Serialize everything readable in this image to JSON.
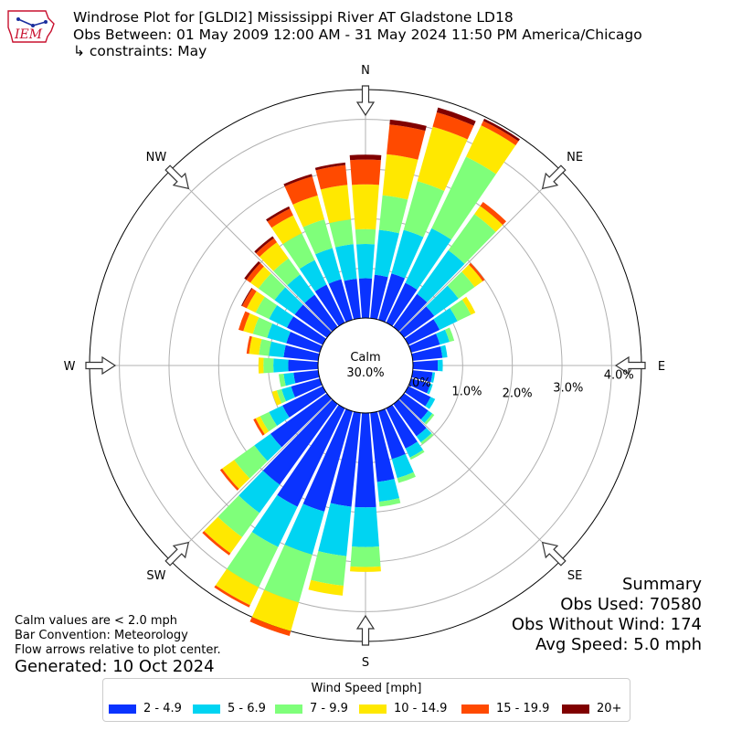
{
  "header": {
    "logo_text": "IEM",
    "title_line1": "Windrose Plot for [GLDI2] Mississippi River  AT Gladstone LD18",
    "title_line2": "Obs Between: 01 May 2009 12:00 AM - 31 May 2024 11:50 PM America/Chicago",
    "title_line3": "↳ constraints: May"
  },
  "summary": {
    "heading": "Summary",
    "obs_used": "Obs Used: 70580",
    "obs_without_wind": "Obs Without Wind: 174",
    "avg_speed": "Avg Speed: 5.0 mph"
  },
  "notes": {
    "calm_note": "Calm values are < 2.0 mph",
    "bar_convention": "Bar Convention: Meteorology",
    "flow_arrows": "Flow arrows relative to plot center.",
    "generated": "Generated: 10 Oct 2024"
  },
  "chart_data": {
    "type": "windrose",
    "calm_label": "Calm",
    "calm_value": "30.0%",
    "radial_ticks": [
      0,
      1,
      2,
      3,
      4
    ],
    "radial_tick_labels": [
      "0.0%",
      "1.0%",
      "2.0%",
      "3.0%",
      "4.0%"
    ],
    "radial_max": 4.6,
    "directions": [
      {
        "label": "N",
        "angle": 0
      },
      {
        "label": "NE",
        "angle": 45
      },
      {
        "label": "E",
        "angle": 90
      },
      {
        "label": "SE",
        "angle": 135
      },
      {
        "label": "S",
        "angle": 180
      },
      {
        "label": "SW",
        "angle": 225
      },
      {
        "label": "W",
        "angle": 270
      },
      {
        "label": "NW",
        "angle": 315
      }
    ],
    "legend_title": "Wind Speed [mph]",
    "bins": [
      {
        "label": "2 - 4.9",
        "color": "#0a33ff"
      },
      {
        "label": "5 - 6.9",
        "color": "#00d4f2"
      },
      {
        "label": "7 - 9.9",
        "color": "#7fff7a"
      },
      {
        "label": "10 - 14.9",
        "color": "#ffe800"
      },
      {
        "label": "15 - 19.9",
        "color": "#ff4a00"
      },
      {
        "label": "20+",
        "color": "#800000"
      }
    ],
    "sectors": [
      {
        "dir": 0,
        "values": [
          0.8,
          0.69,
          0.3,
          0.9,
          0.5,
          0.1
        ]
      },
      {
        "dir": 10,
        "values": [
          0.88,
          0.91,
          0.7,
          0.83,
          0.6,
          0.1
        ]
      },
      {
        "dir": 20,
        "values": [
          0.97,
          0.91,
          1.02,
          1.14,
          0.3,
          0.1
        ]
      },
      {
        "dir": 30,
        "values": [
          0.89,
          1.22,
          1.6,
          0.7,
          0.1,
          0.05
        ]
      },
      {
        "dir": 40,
        "values": [
          0.82,
          1.08,
          0.9,
          0.2,
          0.1,
          0.0
        ]
      },
      {
        "dir": 50,
        "values": [
          0.75,
          0.6,
          0.4,
          0.2,
          0.05,
          0.0
        ]
      },
      {
        "dir": 60,
        "values": [
          0.7,
          0.4,
          0.3,
          0.1,
          0.0,
          0.0
        ]
      },
      {
        "dir": 70,
        "values": [
          0.6,
          0.2,
          0.1,
          0.0,
          0.0,
          0.0
        ]
      },
      {
        "dir": 80,
        "values": [
          0.6,
          0.1,
          0.0,
          0.0,
          0.0,
          0.0
        ]
      },
      {
        "dir": 90,
        "values": [
          0.5,
          0.1,
          0.0,
          0.0,
          0.0,
          0.0
        ]
      },
      {
        "dir": 100,
        "values": [
          0.4,
          0.05,
          0.0,
          0.0,
          0.0,
          0.0
        ]
      },
      {
        "dir": 110,
        "values": [
          0.4,
          0.05,
          0.0,
          0.0,
          0.0,
          0.0
        ]
      },
      {
        "dir": 120,
        "values": [
          0.5,
          0.1,
          0.0,
          0.0,
          0.0,
          0.0
        ]
      },
      {
        "dir": 130,
        "values": [
          0.6,
          0.1,
          0.05,
          0.0,
          0.0,
          0.0
        ]
      },
      {
        "dir": 140,
        "values": [
          0.8,
          0.15,
          0.05,
          0.0,
          0.0,
          0.0
        ]
      },
      {
        "dir": 150,
        "values": [
          0.9,
          0.2,
          0.05,
          0.0,
          0.0,
          0.0
        ]
      },
      {
        "dir": 160,
        "values": [
          1.0,
          0.4,
          0.1,
          0.0,
          0.0,
          0.0
        ]
      },
      {
        "dir": 170,
        "values": [
          1.4,
          0.4,
          0.1,
          0.0,
          0.0,
          0.0
        ]
      },
      {
        "dir": 180,
        "values": [
          1.9,
          0.8,
          0.4,
          0.1,
          0.0,
          0.0
        ]
      },
      {
        "dir": 190,
        "values": [
          1.9,
          1.0,
          0.6,
          0.2,
          0.0,
          0.0
        ]
      },
      {
        "dir": 200,
        "values": [
          2.1,
          0.9,
          1.0,
          0.6,
          0.1,
          0.0
        ]
      },
      {
        "dir": 210,
        "values": [
          2.2,
          0.9,
          0.9,
          0.4,
          0.05,
          0.0
        ]
      },
      {
        "dir": 220,
        "values": [
          2.0,
          0.7,
          0.6,
          0.4,
          0.05,
          0.0
        ]
      },
      {
        "dir": 230,
        "values": [
          1.4,
          0.4,
          0.5,
          0.3,
          0.05,
          0.0
        ]
      },
      {
        "dir": 240,
        "values": [
          0.9,
          0.3,
          0.2,
          0.1,
          0.05,
          0.0
        ]
      },
      {
        "dir": 250,
        "values": [
          0.6,
          0.2,
          0.1,
          0.1,
          0.0,
          0.0
        ]
      },
      {
        "dir": 260,
        "values": [
          0.5,
          0.2,
          0.1,
          0.0,
          0.0,
          0.0
        ]
      },
      {
        "dir": 270,
        "values": [
          0.6,
          0.3,
          0.2,
          0.1,
          0.0,
          0.0
        ]
      },
      {
        "dir": 280,
        "values": [
          0.7,
          0.3,
          0.2,
          0.2,
          0.05,
          0.0
        ]
      },
      {
        "dir": 290,
        "values": [
          0.7,
          0.4,
          0.3,
          0.2,
          0.1,
          0.0
        ]
      },
      {
        "dir": 300,
        "values": [
          0.8,
          0.4,
          0.3,
          0.2,
          0.1,
          0.02
        ]
      },
      {
        "dir": 310,
        "values": [
          0.8,
          0.5,
          0.4,
          0.2,
          0.1,
          0.05
        ]
      },
      {
        "dir": 320,
        "values": [
          0.8,
          0.5,
          0.4,
          0.4,
          0.1,
          0.05
        ]
      },
      {
        "dir": 330,
        "values": [
          0.85,
          0.55,
          0.6,
          0.4,
          0.15,
          0.05
        ]
      },
      {
        "dir": 340,
        "values": [
          0.85,
          0.65,
          0.6,
          0.5,
          0.4,
          0.05
        ]
      },
      {
        "dir": 350,
        "values": [
          0.8,
          0.7,
          0.5,
          0.7,
          0.4,
          0.05
        ]
      }
    ]
  }
}
